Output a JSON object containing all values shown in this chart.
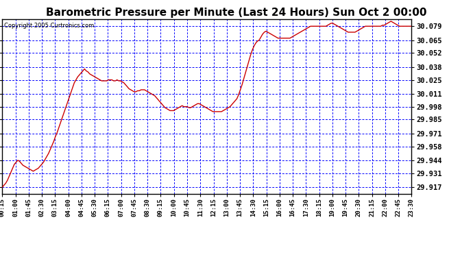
{
  "title": "Barometric Pressure per Minute (Last 24 Hours) Sun Oct 2 00:00",
  "copyright": "Copyright 2005 Curtronics.com",
  "title_fontsize": 11,
  "bg_color": "#ffffff",
  "plot_bg_color": "#ffffff",
  "grid_color": "#0000ff",
  "line_color": "#cc0000",
  "yticks": [
    29.917,
    29.931,
    29.944,
    29.958,
    29.971,
    29.985,
    29.998,
    30.011,
    30.025,
    30.038,
    30.052,
    30.065,
    30.079
  ],
  "ymin": 29.91,
  "ymax": 30.086,
  "xtick_labels": [
    "00:15",
    "01:00",
    "01:45",
    "02:30",
    "03:15",
    "04:00",
    "04:45",
    "05:30",
    "06:15",
    "07:00",
    "07:45",
    "08:30",
    "09:15",
    "10:00",
    "10:45",
    "11:30",
    "12:15",
    "13:00",
    "13:45",
    "14:30",
    "15:15",
    "16:00",
    "16:45",
    "17:30",
    "18:15",
    "19:00",
    "19:45",
    "20:30",
    "21:15",
    "22:00",
    "22:45",
    "23:30"
  ],
  "pressure_data": [
    29.917,
    29.919,
    29.921,
    29.924,
    29.928,
    29.932,
    29.936,
    29.94,
    29.942,
    29.944,
    29.943,
    29.941,
    29.939,
    29.938,
    29.937,
    29.936,
    29.935,
    29.934,
    29.933,
    29.934,
    29.935,
    29.936,
    29.938,
    29.94,
    29.942,
    29.945,
    29.948,
    29.951,
    29.955,
    29.959,
    29.963,
    29.968,
    29.972,
    29.977,
    29.982,
    29.987,
    29.992,
    29.997,
    30.002,
    30.007,
    30.012,
    30.017,
    30.022,
    30.025,
    30.028,
    30.03,
    30.032,
    30.034,
    30.036,
    30.034,
    30.033,
    30.031,
    30.03,
    30.029,
    30.028,
    30.027,
    30.026,
    30.025,
    30.024,
    30.024,
    30.024,
    30.024,
    30.025,
    30.025,
    30.025,
    30.024,
    30.024,
    30.025,
    30.024,
    30.024,
    30.023,
    30.022,
    30.02,
    30.018,
    30.016,
    30.015,
    30.014,
    30.013,
    30.013,
    30.014,
    30.014,
    30.015,
    30.015,
    30.015,
    30.014,
    30.013,
    30.012,
    30.011,
    30.01,
    30.009,
    30.007,
    30.005,
    30.003,
    30.001,
    29.999,
    29.997,
    29.996,
    29.995,
    29.994,
    29.994,
    29.994,
    29.995,
    29.996,
    29.997,
    29.998,
    29.999,
    29.998,
    29.998,
    29.998,
    29.997,
    29.997,
    29.998,
    29.999,
    30.0,
    30.001,
    30.001,
    30.0,
    29.999,
    29.998,
    29.997,
    29.996,
    29.995,
    29.994,
    29.993,
    29.993,
    29.993,
    29.993,
    29.993,
    29.993,
    29.994,
    29.995,
    29.996,
    29.997,
    29.998,
    30.0,
    30.002,
    30.004,
    30.006,
    30.01,
    30.015,
    30.02,
    30.026,
    30.032,
    30.038,
    30.044,
    30.05,
    30.055,
    30.059,
    30.062,
    30.064,
    30.065,
    30.068,
    30.071,
    30.073,
    30.074,
    30.073,
    30.072,
    30.071,
    30.07,
    30.069,
    30.068,
    30.067,
    30.067,
    30.067,
    30.067,
    30.067,
    30.067,
    30.067,
    30.067,
    30.068,
    30.069,
    30.07,
    30.071,
    30.072,
    30.073,
    30.074,
    30.075,
    30.076,
    30.077,
    30.078,
    30.079,
    30.079,
    30.079,
    30.079,
    30.079,
    30.079,
    30.079,
    30.079,
    30.079,
    30.079,
    30.08,
    30.081,
    30.082,
    30.082,
    30.081,
    30.08,
    30.079,
    30.078,
    30.077,
    30.076,
    30.075,
    30.074,
    30.073,
    30.073,
    30.073,
    30.073,
    30.073,
    30.074,
    30.075,
    30.076,
    30.077,
    30.078,
    30.079,
    30.079,
    30.079,
    30.079,
    30.079,
    30.079,
    30.079,
    30.079,
    30.079,
    30.079,
    30.08,
    30.08,
    30.081,
    30.082,
    30.083,
    30.084,
    30.083,
    30.082,
    30.081,
    30.08,
    30.079,
    30.079,
    30.079,
    30.079,
    30.079,
    30.079,
    30.079,
    30.079
  ]
}
